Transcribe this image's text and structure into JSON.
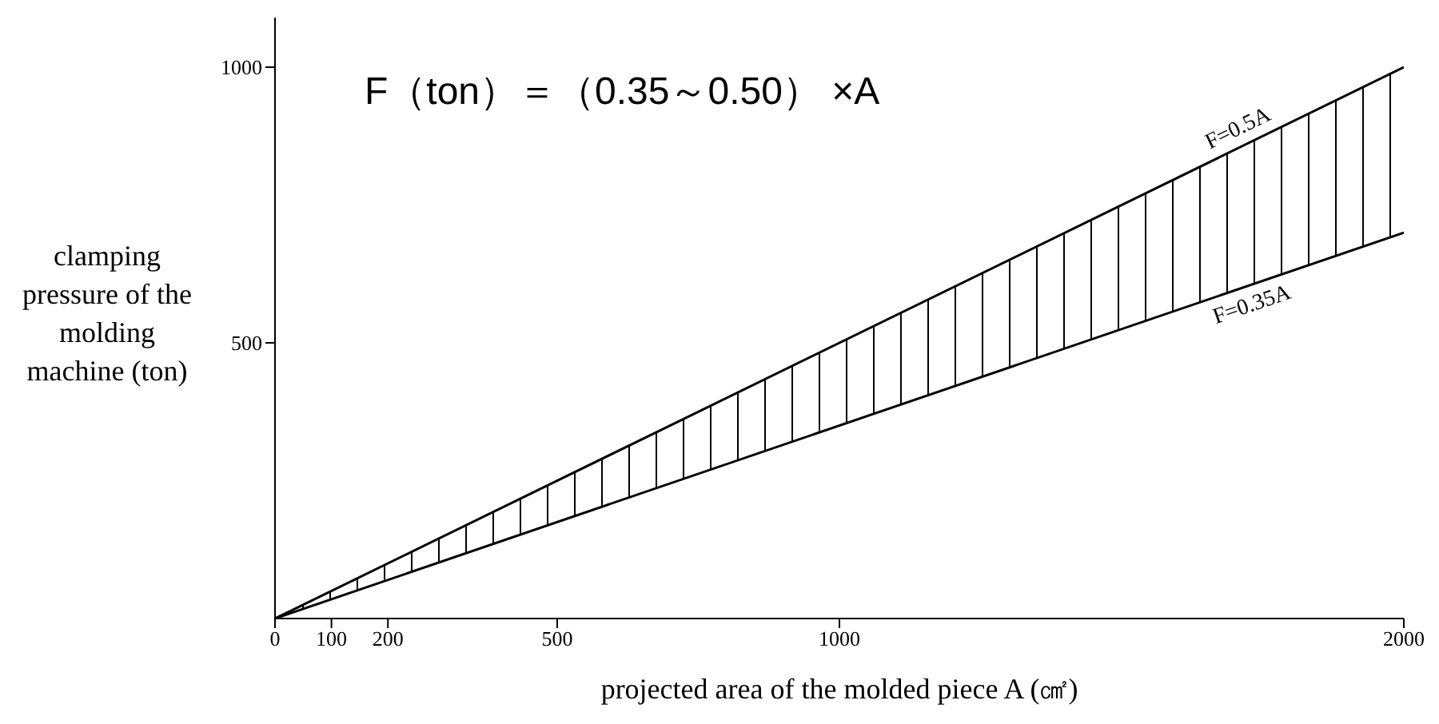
{
  "chart_data": {
    "type": "line",
    "annotations": [
      "F（ton）＝（0.35～0.50） ×A"
    ],
    "ylabel": "clamping pressure of the molding machine (ton)",
    "xlabel": "projected area of the molded piece A (㎠)",
    "x": [
      0,
      2000
    ],
    "series": [
      {
        "name": "F=0.5A",
        "color": "#000000",
        "values": [
          0,
          1000
        ],
        "lower": [
          0,
          700
        ],
        "upper": [
          0,
          1000
        ]
      },
      {
        "name": "F=0.35A",
        "color": "#000000",
        "values": [
          0,
          700
        ]
      }
    ],
    "xlim": [
      0,
      2000
    ],
    "xticks": [
      0,
      100,
      200,
      500,
      1000,
      2000
    ],
    "ylim": [
      0,
      1090
    ],
    "yticks": [
      500,
      1000
    ],
    "marker": "none",
    "line_style": "solid"
  }
}
